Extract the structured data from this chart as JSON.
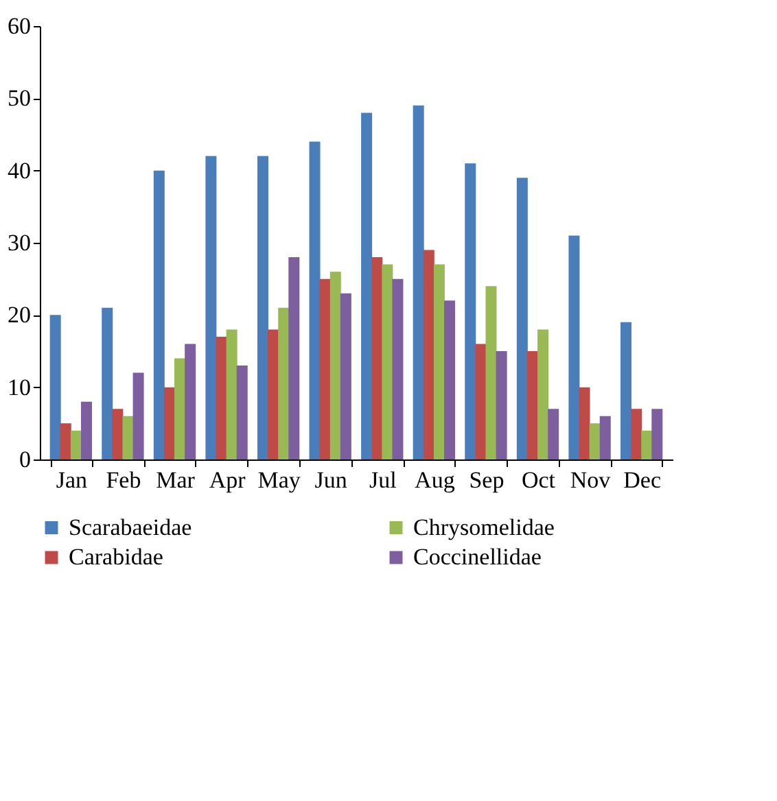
{
  "chart_data": {
    "type": "bar",
    "categories": [
      "Jan",
      "Feb",
      "Mar",
      "Apr",
      "May",
      "Jun",
      "Jul",
      "Aug",
      "Sep",
      "Oct",
      "Nov",
      "Dec"
    ],
    "series": [
      {
        "name": "Scarabaeidae",
        "color": "#4a7ebb",
        "values": [
          20,
          21,
          40,
          42,
          42,
          44,
          48,
          49,
          41,
          39,
          31,
          19
        ]
      },
      {
        "name": "Carabidae",
        "color": "#be4b48",
        "values": [
          5,
          7,
          10,
          17,
          18,
          25,
          28,
          29,
          16,
          15,
          10,
          7
        ]
      },
      {
        "name": "Chrysomelidae",
        "color": "#98b954",
        "values": [
          4,
          6,
          14,
          18,
          21,
          26,
          27,
          27,
          24,
          18,
          5,
          4
        ]
      },
      {
        "name": "Coccinellidae",
        "color": "#7d5fa0",
        "values": [
          8,
          12,
          16,
          13,
          28,
          23,
          25,
          22,
          15,
          7,
          6,
          7
        ]
      }
    ],
    "ylim": [
      0,
      60
    ],
    "yticks": [
      0,
      10,
      20,
      30,
      40,
      50,
      60
    ],
    "grid": false,
    "legend": "bottom"
  }
}
